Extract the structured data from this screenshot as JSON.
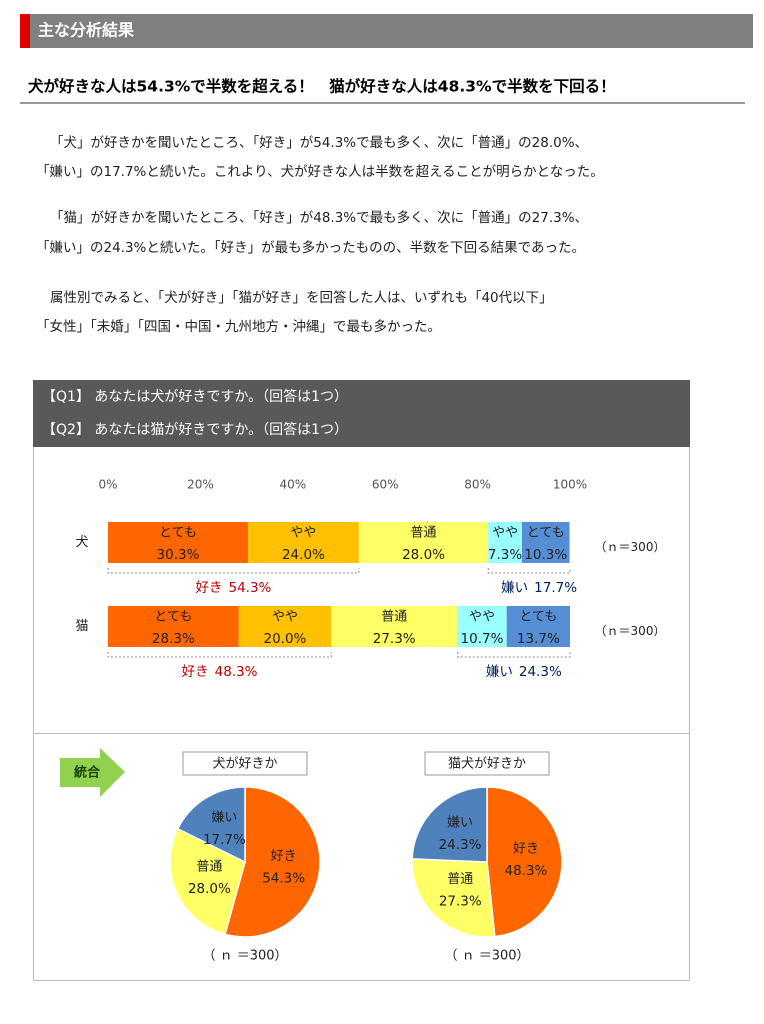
{
  "header": {
    "title": "主な分析結果"
  },
  "headline": "犬が好きな人は54.3%で半数を超える！　猫が好きな人は48.3%で半数を下回る！",
  "paragraphs": [
    [
      "「犬」が好きかを聞いたところ、「好き」が54.3%で最も多く、次に「普通」の28.0%、",
      "「嫌い」の17.7%と続いた。これより、犬が好きな人は半数を超えることが明らかとなった。"
    ],
    [
      "「猫」が好きかを聞いたところ、「好き」が48.3%で最も多く、次に「普通」の27.3%、",
      "「嫌い」の24.3%と続いた。「好き」が最も多かったものの、半数を下回る結果であった。"
    ],
    [
      "属性別でみると、「犬が好き」「猫が好き」を回答した人は、いずれも「40代以下」",
      "「女性」「未婚」「四国・中国・九州地方・沖縄」で最も多かった。"
    ]
  ],
  "questions": [
    "【Q1】 あなたは犬が好きですか。（回答は1つ）",
    "【Q2】 あなたは猫が好きですか。（回答は1つ）"
  ],
  "merge_label": "統合",
  "chart_data": [
    {
      "type": "bar",
      "orientation": "horizontal",
      "stacked": true,
      "categories": [
        "犬",
        "猫"
      ],
      "series": [
        {
          "name": "とても",
          "color": "#ff6600",
          "values": [
            30.3,
            28.3
          ],
          "value_labels": [
            "30.3%",
            "28.3%"
          ]
        },
        {
          "name": "やや",
          "color": "#ffc000",
          "values": [
            24.0,
            20.0
          ],
          "value_labels": [
            "24.0%",
            "20.0%"
          ]
        },
        {
          "name": "普通",
          "color": "#ffff66",
          "values": [
            28.0,
            27.3
          ],
          "value_labels": [
            "28.0%",
            "27.3%"
          ]
        },
        {
          "name": "やや",
          "color": "#99ffff",
          "values": [
            7.3,
            10.7
          ],
          "value_labels": [
            "7.3%",
            "10.7%"
          ]
        },
        {
          "name": "とても",
          "color": "#558ed5",
          "values": [
            10.3,
            13.7
          ],
          "value_labels": [
            "10.3%",
            "13.7%"
          ]
        }
      ],
      "groups": [
        {
          "name": "好き",
          "color": "#c00000",
          "values": [
            54.3,
            48.3
          ],
          "value_labels": [
            "54.3%",
            "48.3%"
          ]
        },
        {
          "name": "嫌い",
          "color": "#002060",
          "values": [
            17.7,
            24.3
          ],
          "value_labels": [
            "17.7%",
            "24.3%"
          ]
        }
      ],
      "n_labels": [
        "（ｎ＝300）",
        "（ｎ＝300）"
      ],
      "xlim": [
        0,
        100
      ],
      "xticks": [
        {
          "value": 0,
          "label": "0%"
        },
        {
          "value": 20,
          "label": "20%"
        },
        {
          "value": 40,
          "label": "40%"
        },
        {
          "value": 60,
          "label": "60%"
        },
        {
          "value": 80,
          "label": "80%"
        },
        {
          "value": 100,
          "label": "100%"
        }
      ]
    },
    {
      "type": "pie",
      "title": "犬が好きか",
      "categories": [
        "好き",
        "普通",
        "嫌い"
      ],
      "values": [
        54.3,
        28.0,
        17.7
      ],
      "value_labels": [
        "54.3%",
        "28.0%",
        "17.7%"
      ],
      "colors": [
        "#ff6600",
        "#ffff66",
        "#4f81bd"
      ],
      "n_label": "（ ｎ ＝300）"
    },
    {
      "type": "pie",
      "title": "猫犬が好きか",
      "categories": [
        "好き",
        "普通",
        "嫌い"
      ],
      "values": [
        48.3,
        27.3,
        24.3
      ],
      "value_labels": [
        "48.3%",
        "27.3%",
        "24.3%"
      ],
      "colors": [
        "#ff6600",
        "#ffff66",
        "#4f81bd"
      ],
      "n_label": "（ ｎ ＝300）"
    }
  ]
}
